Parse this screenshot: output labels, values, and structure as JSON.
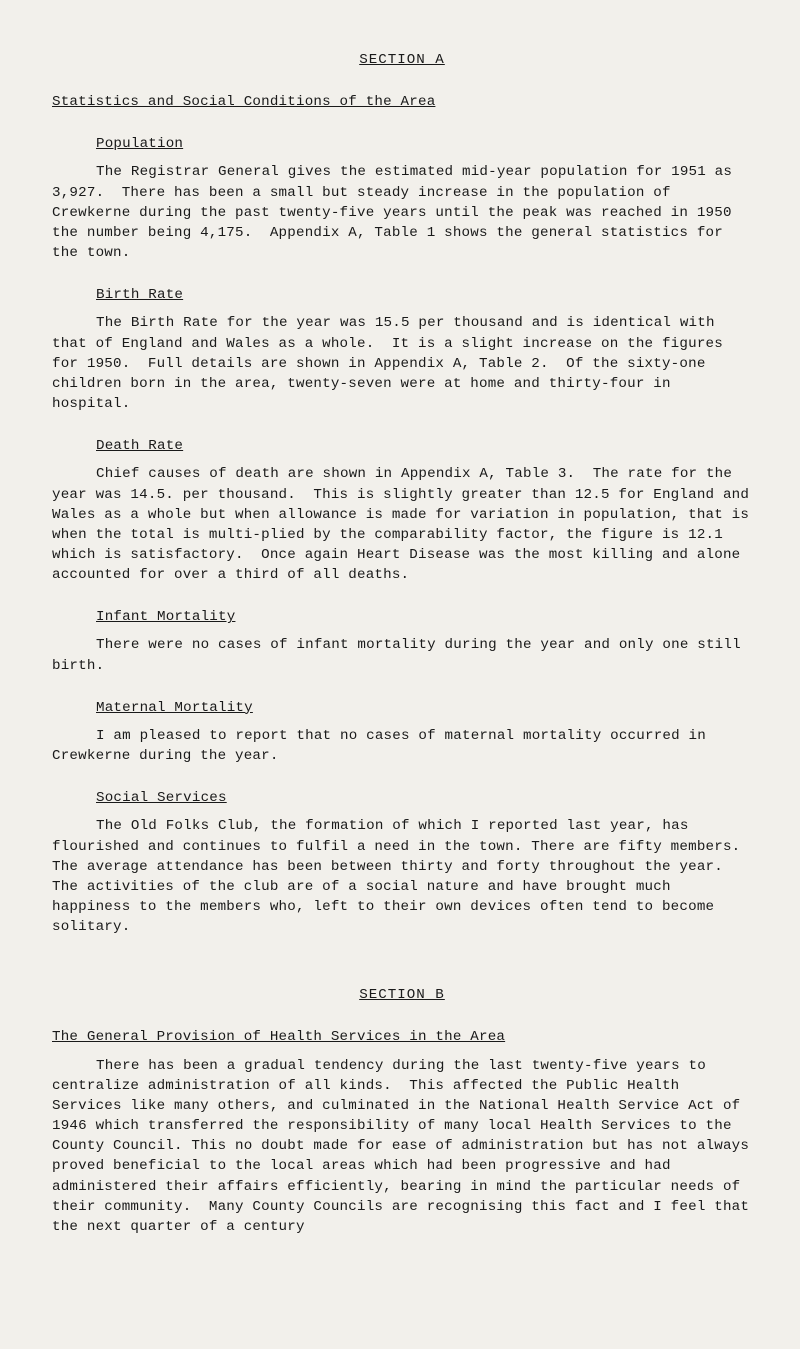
{
  "doc": {
    "text_color": "#1a1a1a",
    "background_color": "#f2f0eb",
    "font_family": "Courier New",
    "base_fontsize_pt": 11,
    "sectionA_title": "SECTION A",
    "statistics_heading": "Statistics and Social Conditions of the Area",
    "population_heading": "Population",
    "population_para": "The Registrar General gives the estimated mid-year population for 1951 as 3,927.  There has been a small but steady increase in the population of Crewkerne during the past twenty-five years until the peak was reached in 1950 the number being 4,175.  Appendix A, Table 1 shows the general statistics for the town.",
    "birth_heading": "Birth Rate",
    "birth_para": "The Birth Rate for the year was 15.5 per thousand and is identical with that of England and Wales as a whole.  It is a slight increase on the figures for 1950.  Full details are shown in Appendix A, Table 2.  Of the sixty-one children born in the area, twenty-seven were at home and thirty-four in hospital.",
    "death_heading": "Death Rate",
    "death_para": "Chief causes of death are shown in Appendix A, Table 3.  The rate for the year was 14.5. per thousand.  This is slightly greater than 12.5 for England and Wales as a whole but when allowance is made for variation in population, that is when the total is multi-plied by the comparability factor, the figure is 12.1 which is satisfactory.  Once again Heart Disease was the most killing and alone accounted for over a third of all deaths.",
    "infant_heading": "Infant Mortality",
    "infant_para": "There were no cases of infant mortality during the year and only one still birth.",
    "maternal_heading": "Maternal Mortality",
    "maternal_para": "I am pleased to report that no cases of maternal mortality occurred in Crewkerne during the year.",
    "social_heading": "Social Services",
    "social_para": "The Old Folks Club, the formation of which I reported last year, has flourished and continues to fulfil a need in the town. There are fifty members.  The average attendance has been between thirty and forty throughout the year.  The activities of the club are of a social nature and have brought much happiness to the members who, left to their own devices often tend to become solitary.",
    "sectionB_title": "SECTION B",
    "general_provision_heading": "The General Provision of Health Services in the Area",
    "general_provision_para": "There has been a gradual tendency during the last twenty-five years to centralize administration of all kinds.  This affected the Public Health Services like many others, and culminated in the National Health Service Act of 1946 which transferred the responsibility of many local Health Services to the County Council. This no doubt made for ease of administration but has not always proved beneficial to the local areas which had been progressive and had administered their affairs efficiently, bearing in mind the particular needs of their community.  Many County Councils are recognising this fact and I feel that the next quarter of a century"
  }
}
